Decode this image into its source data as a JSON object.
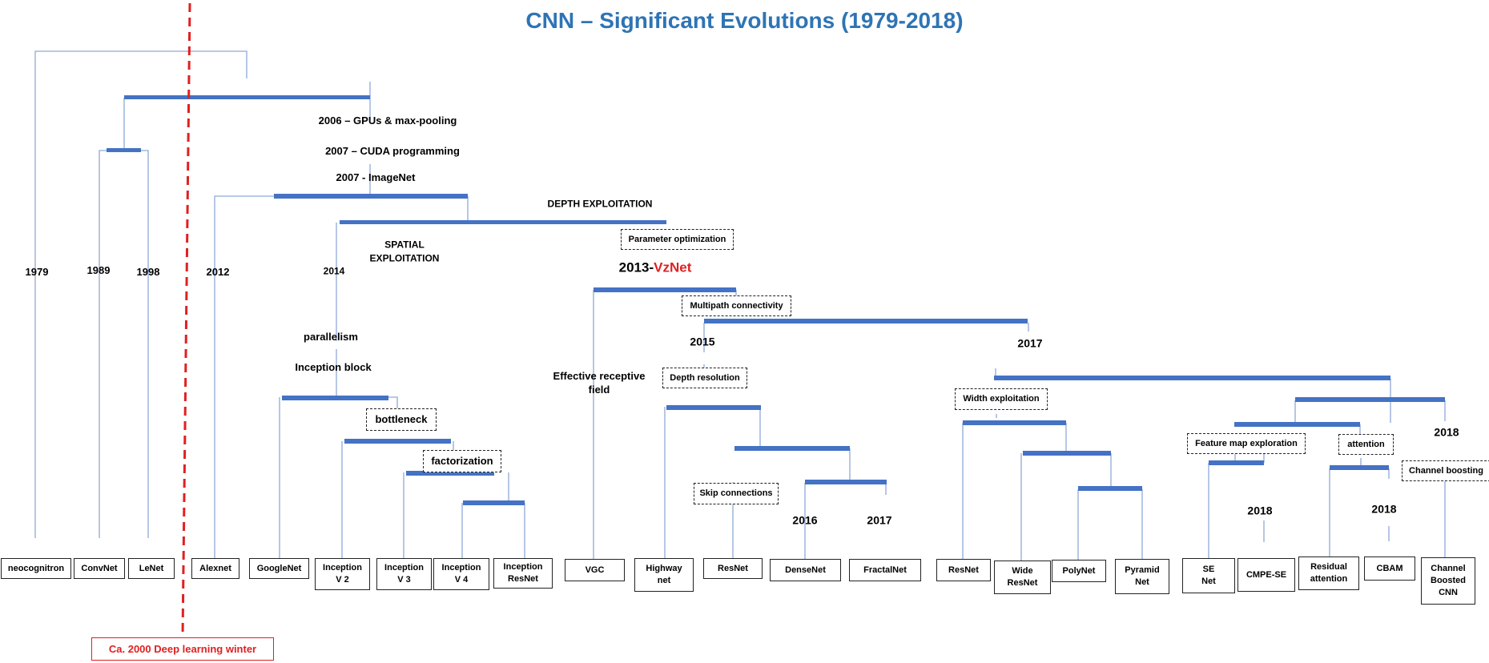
{
  "title": "CNN – Significant Evolutions (1979-2018)",
  "colors": {
    "title": "#2e74b5",
    "bar": "#4472c4",
    "line": "#8fa9d9",
    "winter": "#e02020"
  },
  "years": {
    "y1979": "1979",
    "y1989": "1989",
    "y1998": "1998",
    "y2012": "2012",
    "y2014": "2014",
    "y2015": "2015",
    "y2017a": "2017",
    "y2016": "2016",
    "y2017b": "2017",
    "y2018a": "2018",
    "y2018b": "2018",
    "y2018c": "2018"
  },
  "milestones": {
    "gpus": "2006 – GPUs & max-pooling",
    "cuda": "2007 – CUDA programming",
    "imagenet": "2007 - ImageNet"
  },
  "labels": {
    "depth_exploitation": "DEPTH EXPLOITATION",
    "spatial_1": "SPATIAL",
    "spatial_2": "EXPLOITATION",
    "parallelism": "parallelism",
    "inception_block": "Inception block",
    "effective_1": "Effective receptive",
    "effective_2": "field",
    "vznet_year": "2013-",
    "vznet_name": "VzNet"
  },
  "tags": {
    "parameter_optimization": "Parameter optimization",
    "multipath": "Multipath  connectivity",
    "depth_resolution": "Depth resolution",
    "bottleneck": "bottleneck",
    "factorization": "factorization",
    "skip_connections": "Skip connections",
    "width_exploitation": "Width  exploitation",
    "feature_map": "Feature map exploration",
    "attention": "attention",
    "channel_boosting": "Channel boosting"
  },
  "leaves": {
    "neocognitron": "neocognitron",
    "convnet": "ConvNet",
    "lenet": "LeNet",
    "alexnet": "Alexnet",
    "googlenet": "GoogleNet",
    "inception_v2_1": "Inception",
    "inception_v2_2": "V 2",
    "inception_v3_1": "Inception",
    "inception_v3_2": "V 3",
    "inception_v4_1": "Inception",
    "inception_v4_2": "V 4",
    "inception_resnet_1": "Inception",
    "inception_resnet_2": "ResNet",
    "vgg": "VGC",
    "highway_1": "Highway",
    "highway_2": "net",
    "resnet": "ResNet",
    "densenet": "DenseNet",
    "fractalnet": "FractalNet",
    "resnet2": "ResNet",
    "wide_resnet_1": "Wide",
    "wide_resnet_2": "ResNet",
    "polynet": "PolyNet",
    "pyramid_1": "Pyramid",
    "pyramid_2": "Net",
    "se_1": "SE",
    "se_2": "Net",
    "cmpe_se": "CMPE-SE",
    "residual_att_1": "Residual",
    "residual_att_2": "attention",
    "cbam": "CBAM",
    "cb_cnn_1": "Channel",
    "cb_cnn_2": "Boosted",
    "cb_cnn_3": "CNN"
  },
  "winter_label": "Ca. 2000 Deep learning winter"
}
